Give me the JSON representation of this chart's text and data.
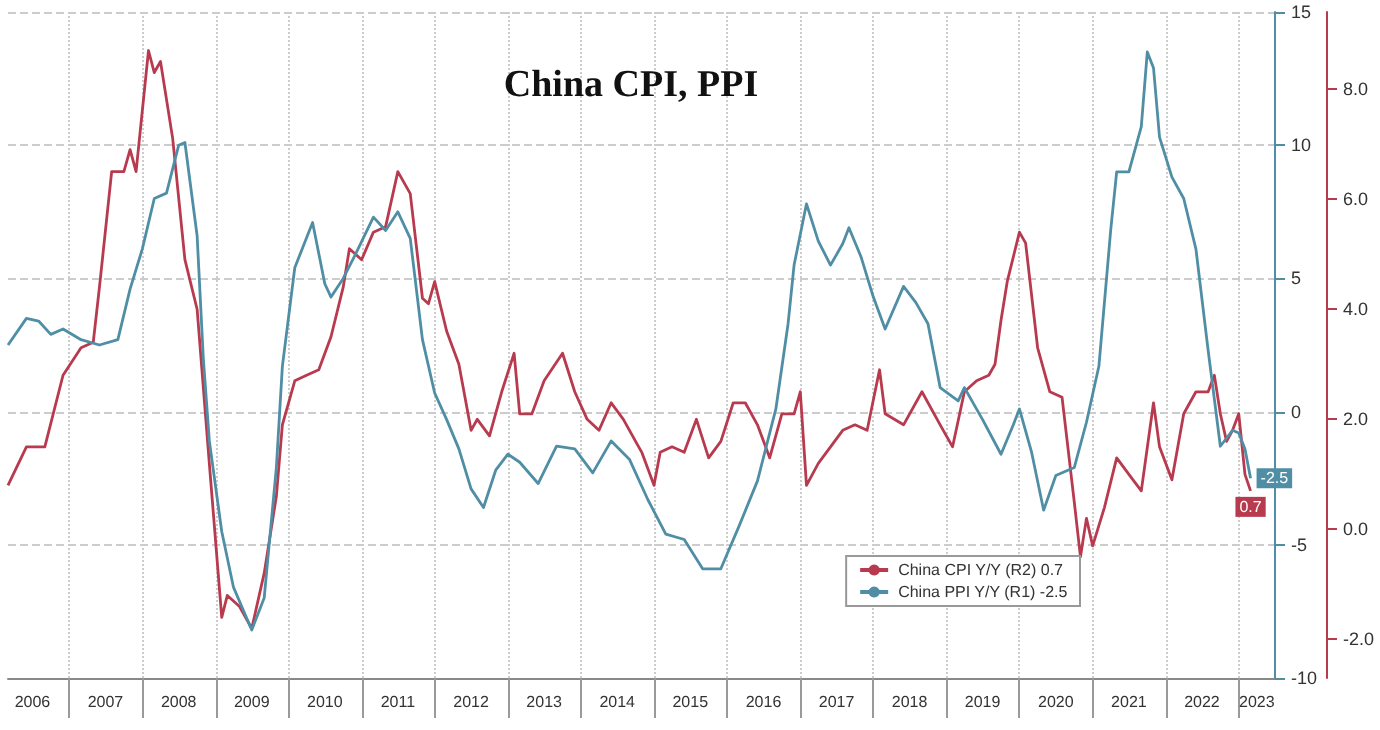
{
  "chart_data": {
    "type": "line",
    "title": "China CPI, PPI",
    "legend": "bottom right",
    "grid": true,
    "xlim": [
      "2006-03",
      "2023-07"
    ],
    "xticks": [
      {
        "value": "2006-07",
        "label": "2006"
      },
      {
        "value": "2007-01",
        "label": null
      },
      {
        "value": "2007-07",
        "label": "2007"
      },
      {
        "value": "2008-01",
        "label": null
      },
      {
        "value": "2008-07",
        "label": "2008"
      },
      {
        "value": "2009-01",
        "label": null
      },
      {
        "value": "2009-07",
        "label": "2009"
      },
      {
        "value": "2010-01",
        "label": null
      },
      {
        "value": "2010-07",
        "label": "2010"
      },
      {
        "value": "2011-01",
        "label": null
      },
      {
        "value": "2011-07",
        "label": "2011"
      },
      {
        "value": "2012-01",
        "label": null
      },
      {
        "value": "2012-07",
        "label": "2012"
      },
      {
        "value": "2013-01",
        "label": null
      },
      {
        "value": "2013-07",
        "label": "2013"
      },
      {
        "value": "2014-01",
        "label": null
      },
      {
        "value": "2014-07",
        "label": "2014"
      },
      {
        "value": "2015-01",
        "label": null
      },
      {
        "value": "2015-07",
        "label": "2015"
      },
      {
        "value": "2016-01",
        "label": null
      },
      {
        "value": "2016-07",
        "label": "2016"
      },
      {
        "value": "2017-01",
        "label": null
      },
      {
        "value": "2017-07",
        "label": "2017"
      },
      {
        "value": "2018-01",
        "label": null
      },
      {
        "value": "2018-07",
        "label": "2018"
      },
      {
        "value": "2019-01",
        "label": null
      },
      {
        "value": "2019-07",
        "label": "2019"
      },
      {
        "value": "2020-01",
        "label": null
      },
      {
        "value": "2020-07",
        "label": "2020"
      },
      {
        "value": "2021-01",
        "label": null
      },
      {
        "value": "2021-07",
        "label": "2021"
      },
      {
        "value": "2022-01",
        "label": null
      },
      {
        "value": "2022-07",
        "label": "2022"
      },
      {
        "value": "2023-01",
        "label": null
      },
      {
        "value": "2023-04",
        "label": "2023"
      }
    ],
    "ylim": [
      -10,
      15
    ],
    "yticks": [
      -10,
      -5,
      0,
      5,
      10,
      15
    ],
    "y2lim": [
      -2.7,
      9.4
    ],
    "y2ticks": [
      {
        "value": -2,
        "label": "-2.0"
      },
      {
        "value": 0,
        "label": "0.0"
      },
      {
        "value": 2,
        "label": "2.0"
      },
      {
        "value": 4,
        "label": "4.0"
      },
      {
        "value": 6,
        "label": "6.0"
      },
      {
        "value": 8,
        "label": "8.0"
      }
    ],
    "series": [
      {
        "name": "China CPI Y/Y (R2) 0.7",
        "color": "#b83a4f",
        "axis": "y2",
        "x": [
          "2006-03",
          "2006-06",
          "2006-09",
          "2006-12",
          "2007-03",
          "2007-05",
          "2007-06",
          "2007-08",
          "2007-10",
          "2007-11",
          "2007-12",
          "2008-02",
          "2008-03",
          "2008-04",
          "2008-06",
          "2008-08",
          "2008-10",
          "2008-12",
          "2009-02",
          "2009-03",
          "2009-05",
          "2009-07",
          "2009-09",
          "2009-11",
          "2009-12",
          "2010-02",
          "2010-04",
          "2010-06",
          "2010-08",
          "2010-10",
          "2010-11",
          "2011-01",
          "2011-03",
          "2011-05",
          "2011-07",
          "2011-09",
          "2011-11",
          "2011-12",
          "2012-01",
          "2012-03",
          "2012-05",
          "2012-07",
          "2012-08",
          "2012-10",
          "2012-12",
          "2013-02",
          "2013-03",
          "2013-05",
          "2013-07",
          "2013-10",
          "2013-12",
          "2014-02",
          "2014-04",
          "2014-06",
          "2014-08",
          "2014-10",
          "2014-11",
          "2015-01",
          "2015-02",
          "2015-04",
          "2015-06",
          "2015-08",
          "2015-10",
          "2015-12",
          "2016-02",
          "2016-04",
          "2016-06",
          "2016-08",
          "2016-10",
          "2016-12",
          "2017-01",
          "2017-02",
          "2017-04",
          "2017-06",
          "2017-08",
          "2017-10",
          "2017-12",
          "2018-02",
          "2018-03",
          "2018-06",
          "2018-09",
          "2018-12",
          "2019-02",
          "2019-04",
          "2019-06",
          "2019-08",
          "2019-09",
          "2019-10",
          "2019-11",
          "2020-01",
          "2020-02",
          "2020-04",
          "2020-06",
          "2020-08",
          "2020-10",
          "2020-11",
          "2020-12",
          "2021-01",
          "2021-03",
          "2021-05",
          "2021-07",
          "2021-09",
          "2021-11",
          "2021-12",
          "2022-02",
          "2022-04",
          "2022-06",
          "2022-08",
          "2022-09",
          "2022-10",
          "2022-11",
          "2022-12",
          "2023-01",
          "2023-02",
          "2023-03"
        ],
        "values": [
          0.8,
          1.5,
          1.5,
          2.8,
          3.3,
          3.4,
          4.4,
          6.5,
          6.5,
          6.9,
          6.5,
          8.7,
          8.3,
          8.5,
          7.1,
          4.9,
          4.0,
          1.2,
          -1.6,
          -1.2,
          -1.4,
          -1.8,
          -0.8,
          0.6,
          1.9,
          2.7,
          2.8,
          2.9,
          3.5,
          4.4,
          5.1,
          4.9,
          5.4,
          5.5,
          6.5,
          6.1,
          4.2,
          4.1,
          4.5,
          3.6,
          3.0,
          1.8,
          2.0,
          1.7,
          2.5,
          3.2,
          2.1,
          2.1,
          2.7,
          3.2,
          2.5,
          2.0,
          1.8,
          2.3,
          2.0,
          1.6,
          1.4,
          0.8,
          1.4,
          1.5,
          1.4,
          2.0,
          1.3,
          1.6,
          2.3,
          2.3,
          1.9,
          1.3,
          2.1,
          2.1,
          2.5,
          0.8,
          1.2,
          1.5,
          1.8,
          1.9,
          1.8,
          2.9,
          2.1,
          1.9,
          2.5,
          1.9,
          1.5,
          2.5,
          2.7,
          2.8,
          3.0,
          3.8,
          4.5,
          5.4,
          5.2,
          3.3,
          2.5,
          2.4,
          0.5,
          -0.5,
          0.2,
          -0.3,
          0.4,
          1.3,
          1.0,
          0.7,
          2.3,
          1.5,
          0.9,
          2.1,
          2.5,
          2.5,
          2.8,
          2.1,
          1.6,
          1.8,
          2.1,
          1.0,
          0.7
        ],
        "value_labels": [
          null,
          null,
          null,
          null,
          null,
          null,
          null,
          null,
          null,
          null,
          null,
          null,
          null,
          null,
          null,
          null,
          null,
          null,
          null,
          null,
          null,
          null,
          null,
          null,
          null,
          null,
          null,
          null,
          null,
          null,
          null,
          null,
          null,
          null,
          null,
          null,
          null,
          null,
          null,
          null,
          null,
          null,
          null,
          null,
          null,
          null,
          null,
          null,
          null,
          null,
          null,
          null,
          null,
          null,
          null,
          null,
          null,
          null,
          null,
          null,
          null,
          null,
          null,
          null,
          null,
          null,
          null,
          null,
          null,
          null,
          null,
          null,
          null,
          null,
          null,
          null,
          null,
          null,
          null,
          null,
          null,
          null,
          null,
          null,
          null,
          null,
          null,
          null,
          null,
          null,
          null,
          null,
          null,
          null,
          null,
          null,
          null,
          null,
          null,
          null,
          null,
          null,
          null,
          null,
          null,
          null,
          null,
          null,
          null,
          null,
          null,
          null,
          null,
          null,
          "0.7"
        ]
      },
      {
        "name": "China PPI Y/Y (R1) -2.5",
        "color": "#4f8ea5",
        "axis": "y",
        "x": [
          "2006-03",
          "2006-06",
          "2006-08",
          "2006-10",
          "2006-12",
          "2007-03",
          "2007-06",
          "2007-09",
          "2007-11",
          "2008-01",
          "2008-03",
          "2008-05",
          "2008-07",
          "2008-08",
          "2008-10",
          "2008-11",
          "2008-12",
          "2009-02",
          "2009-04",
          "2009-07",
          "2009-09",
          "2009-11",
          "2009-12",
          "2010-02",
          "2010-05",
          "2010-07",
          "2010-08",
          "2010-10",
          "2010-12",
          "2011-03",
          "2011-05",
          "2011-07",
          "2011-09",
          "2011-11",
          "2012-01",
          "2012-03",
          "2012-05",
          "2012-07",
          "2012-09",
          "2012-11",
          "2013-01",
          "2013-03",
          "2013-06",
          "2013-09",
          "2013-12",
          "2014-03",
          "2014-06",
          "2014-09",
          "2014-12",
          "2015-03",
          "2015-06",
          "2015-09",
          "2015-12",
          "2016-03",
          "2016-06",
          "2016-09",
          "2016-11",
          "2016-12",
          "2017-02",
          "2017-04",
          "2017-06",
          "2017-08",
          "2017-09",
          "2017-11",
          "2018-01",
          "2018-03",
          "2018-06",
          "2018-08",
          "2018-10",
          "2018-12",
          "2019-03",
          "2019-04",
          "2019-07",
          "2019-10",
          "2019-12",
          "2020-01",
          "2020-03",
          "2020-05",
          "2020-07",
          "2020-10",
          "2020-12",
          "2021-02",
          "2021-04",
          "2021-05",
          "2021-07",
          "2021-09",
          "2021-10",
          "2021-11",
          "2021-12",
          "2022-02",
          "2022-04",
          "2022-06",
          "2022-08",
          "2022-10",
          "2022-12",
          "2023-01",
          "2023-02",
          "2023-03"
        ],
        "values": [
          2.5,
          3.5,
          3.4,
          2.9,
          3.1,
          2.7,
          2.5,
          2.7,
          4.6,
          6.1,
          8.0,
          8.2,
          10.0,
          10.1,
          6.6,
          2.0,
          -1.1,
          -4.5,
          -6.6,
          -8.2,
          -7.0,
          -2.1,
          1.7,
          5.4,
          7.1,
          4.8,
          4.3,
          5.0,
          5.9,
          7.3,
          6.8,
          7.5,
          6.5,
          2.7,
          0.7,
          -0.3,
          -1.4,
          -2.9,
          -3.6,
          -2.2,
          -1.6,
          -1.9,
          -2.7,
          -1.3,
          -1.4,
          -2.3,
          -1.1,
          -1.8,
          -3.3,
          -4.6,
          -4.8,
          -5.9,
          -5.9,
          -4.3,
          -2.6,
          0.1,
          3.3,
          5.5,
          7.8,
          6.4,
          5.5,
          6.3,
          6.9,
          5.8,
          4.3,
          3.1,
          4.7,
          4.1,
          3.3,
          0.9,
          0.4,
          0.9,
          -0.3,
          -1.6,
          -0.5,
          0.1,
          -1.5,
          -3.7,
          -2.4,
          -2.1,
          -0.4,
          1.7,
          6.8,
          9.0,
          9.0,
          10.7,
          13.5,
          12.9,
          10.3,
          8.8,
          8.0,
          6.1,
          2.3,
          -1.3,
          -0.7,
          -0.8,
          -1.4,
          -2.5
        ],
        "value_labels": [
          null,
          null,
          null,
          null,
          null,
          null,
          null,
          null,
          null,
          null,
          null,
          null,
          null,
          null,
          null,
          null,
          null,
          null,
          null,
          null,
          null,
          null,
          null,
          null,
          null,
          null,
          null,
          null,
          null,
          null,
          null,
          null,
          null,
          null,
          null,
          null,
          null,
          null,
          null,
          null,
          null,
          null,
          null,
          null,
          null,
          null,
          null,
          null,
          null,
          null,
          null,
          null,
          null,
          null,
          null,
          null,
          null,
          null,
          null,
          null,
          null,
          null,
          null,
          null,
          null,
          null,
          null,
          null,
          null,
          null,
          null,
          null,
          null,
          null,
          null,
          null,
          null,
          null,
          null,
          null,
          null,
          null,
          null,
          null,
          null,
          null,
          null,
          null,
          null,
          null,
          null,
          null,
          null,
          null,
          null,
          null,
          null,
          "-2.5"
        ]
      }
    ]
  }
}
